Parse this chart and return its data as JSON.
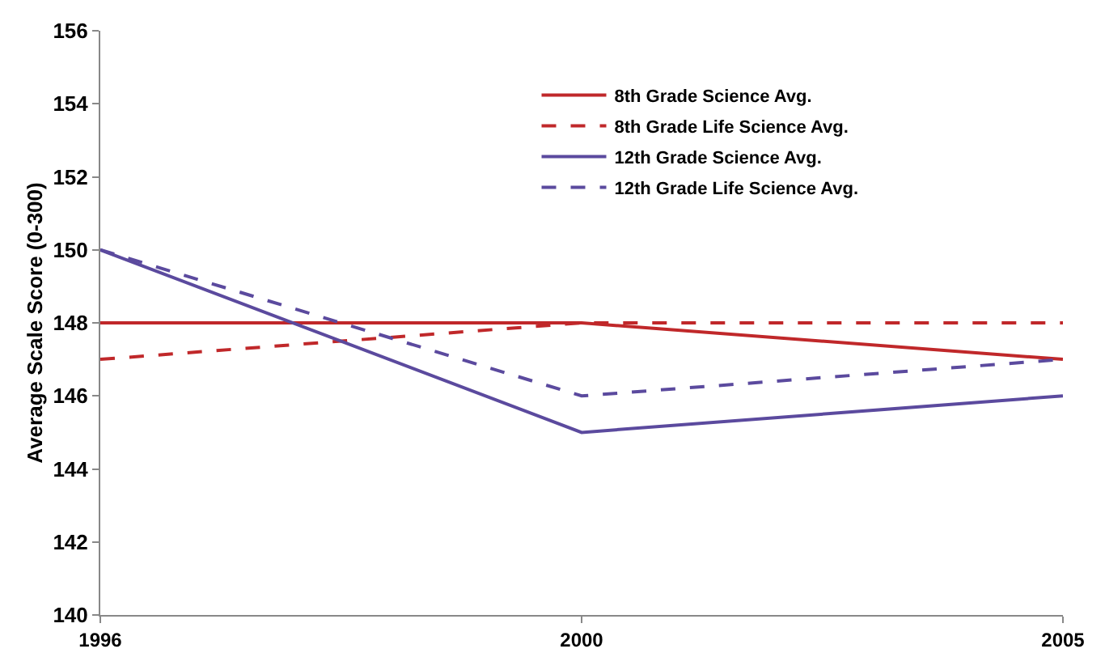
{
  "chart_data": {
    "type": "line",
    "ylabel": "Average Scale Score (0-300)",
    "categories": [
      "1996",
      "2000",
      "2005"
    ],
    "series": [
      {
        "name": "8th Grade Science Avg.",
        "color": "#c0282a",
        "line_style": "solid",
        "values": [
          148,
          148,
          147
        ]
      },
      {
        "name": "8th Grade Life Science Avg.",
        "color": "#c0282a",
        "line_style": "dashed",
        "values": [
          147,
          148,
          148
        ]
      },
      {
        "name": "12th Grade Science Avg.",
        "color": "#5b4a9e",
        "line_style": "solid",
        "values": [
          150,
          145,
          146
        ]
      },
      {
        "name": "12th Grade Life Science Avg.",
        "color": "#5b4a9e",
        "line_style": "dashed",
        "values": [
          150,
          146,
          147
        ]
      }
    ],
    "ylim": [
      140,
      156
    ],
    "yticks": [
      140,
      142,
      144,
      146,
      148,
      150,
      152,
      154,
      156
    ],
    "grid": false,
    "legend": "top right",
    "marker": "none"
  }
}
